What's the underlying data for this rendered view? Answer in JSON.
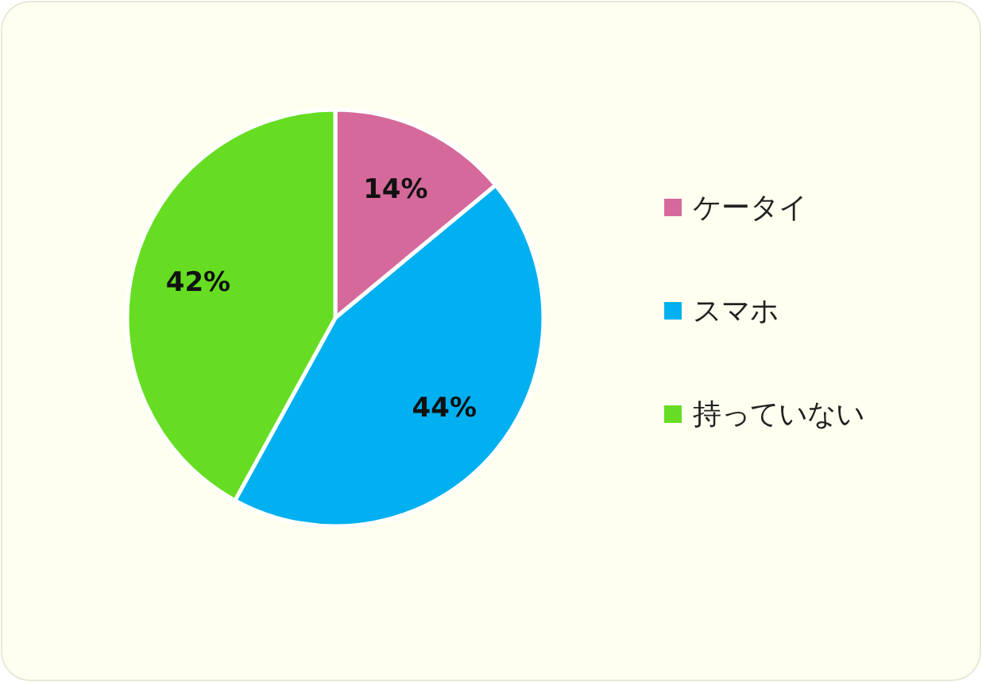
{
  "chart_data": {
    "type": "pie",
    "categories": [
      "ケータイ",
      "スマホ",
      "持っていない"
    ],
    "values": [
      14,
      44,
      42
    ],
    "colors": [
      "#d6699b",
      "#00b0f0",
      "#66dd22"
    ],
    "value_labels": [
      "14%",
      "44%",
      "42%"
    ],
    "legend": "right"
  }
}
